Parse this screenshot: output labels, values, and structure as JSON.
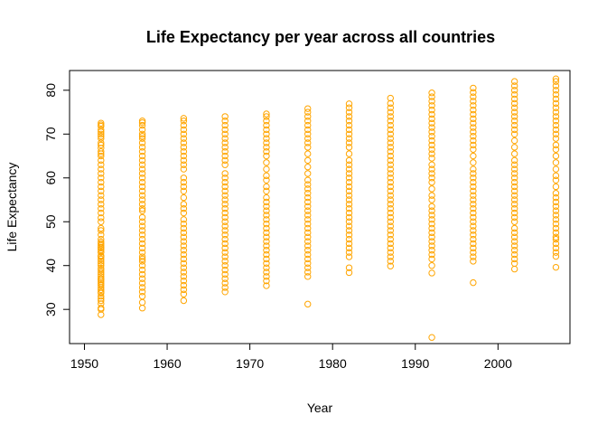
{
  "chart_data": {
    "type": "scatter",
    "title": "Life Expectancy per year across all countries",
    "xlabel": "Year",
    "ylabel": "Life Expectancy",
    "xlim": [
      1948.2,
      2008.7
    ],
    "ylim": [
      22.2,
      84.5
    ],
    "xticks": [
      1950,
      1960,
      1970,
      1980,
      1990,
      2000
    ],
    "yticks": [
      30,
      40,
      50,
      60,
      70,
      80
    ],
    "grid": false,
    "legend": "none",
    "color": "#FFA500",
    "series": [
      {
        "x": 1952,
        "values": [
          28.8,
          30.0,
          30.3,
          31.3,
          32.0,
          32.5,
          33.0,
          33.7,
          34.0,
          34.5,
          35.0,
          35.5,
          35.9,
          36.3,
          36.7,
          37.0,
          37.5,
          38.0,
          38.5,
          39.0,
          39.4,
          40.0,
          40.5,
          41.0,
          41.5,
          42.0,
          42.1,
          42.3,
          43.0,
          43.1,
          43.6,
          44.0,
          44.2,
          44.6,
          45.0,
          45.4,
          46.0,
          47.0,
          48.0,
          48.5,
          50.0,
          50.9,
          52.0,
          53.0,
          54.0,
          55.0,
          56.0,
          57.0,
          58.0,
          59.0,
          60.0,
          61.0,
          62.0,
          63.0,
          64.0,
          65.0,
          65.5,
          66.0,
          66.8,
          67.5,
          68.0,
          69.0,
          69.5,
          70.0,
          70.5,
          71.0,
          71.8,
          72.1,
          72.5
        ]
      },
      {
        "x": 1957,
        "values": [
          30.3,
          31.6,
          33.0,
          34.0,
          35.0,
          36.0,
          37.0,
          38.0,
          39.0,
          40.0,
          41.0,
          41.5,
          42.0,
          43.0,
          44.0,
          45.0,
          46.0,
          47.0,
          48.0,
          49.0,
          50.0,
          51.0,
          52.5,
          53.0,
          54.0,
          55.0,
          56.0,
          57.0,
          58.0,
          59.0,
          60.0,
          61.0,
          62.0,
          63.0,
          64.0,
          65.0,
          66.0,
          67.0,
          68.0,
          69.0,
          69.5,
          70.0,
          71.0,
          72.0,
          72.6,
          73.0
        ]
      },
      {
        "x": 1962,
        "values": [
          32.0,
          33.5,
          34.5,
          35.5,
          36.5,
          37.5,
          38.5,
          39.5,
          40.5,
          41.5,
          42.5,
          43.5,
          44.5,
          45.5,
          46.5,
          47.5,
          48.5,
          49.5,
          50.5,
          52.0,
          53.0,
          54.0,
          55.5,
          57.0,
          58.0,
          59.0,
          60.0,
          62.0,
          63.0,
          64.0,
          65.0,
          66.0,
          67.0,
          68.0,
          69.0,
          70.0,
          71.0,
          72.0,
          73.0,
          73.6
        ]
      },
      {
        "x": 1967,
        "values": [
          34.0,
          35.0,
          36.0,
          37.0,
          38.0,
          39.0,
          40.0,
          41.0,
          42.0,
          43.0,
          44.0,
          45.0,
          46.0,
          47.0,
          48.0,
          49.0,
          50.0,
          51.0,
          52.0,
          53.0,
          54.0,
          55.0,
          56.0,
          57.0,
          58.0,
          59.0,
          60.0,
          61.0,
          63.0,
          64.0,
          65.0,
          66.0,
          67.0,
          68.0,
          69.0,
          70.0,
          71.0,
          72.0,
          73.0,
          74.0
        ]
      },
      {
        "x": 1972,
        "values": [
          35.4,
          36.5,
          37.5,
          38.5,
          39.5,
          40.5,
          41.5,
          42.5,
          43.5,
          44.5,
          45.5,
          46.5,
          47.5,
          48.5,
          49.5,
          50.5,
          51.5,
          52.5,
          53.5,
          54.5,
          55.5,
          57.0,
          58.0,
          59.5,
          60.5,
          62.0,
          63.5,
          65.0,
          66.0,
          67.0,
          68.0,
          69.0,
          70.0,
          71.0,
          72.0,
          73.0,
          74.0,
          74.6
        ]
      },
      {
        "x": 1977,
        "values": [
          31.2,
          37.5,
          38.5,
          39.5,
          40.5,
          41.5,
          42.5,
          43.5,
          44.5,
          45.5,
          46.5,
          47.5,
          48.5,
          49.5,
          50.5,
          51.5,
          52.5,
          53.5,
          54.5,
          55.5,
          56.5,
          57.5,
          58.5,
          59.5,
          61.0,
          62.5,
          64.0,
          65.5,
          67.0,
          68.0,
          69.0,
          70.0,
          71.0,
          72.0,
          73.0,
          74.0,
          75.0,
          75.8
        ]
      },
      {
        "x": 1982,
        "values": [
          38.4,
          39.5,
          42.0,
          43.0,
          44.0,
          45.0,
          46.0,
          47.0,
          48.0,
          49.0,
          50.0,
          51.0,
          52.0,
          53.0,
          54.0,
          55.0,
          56.0,
          57.0,
          58.0,
          59.0,
          60.0,
          61.0,
          62.0,
          63.0,
          64.0,
          65.5,
          67.0,
          68.0,
          69.0,
          70.0,
          71.0,
          72.0,
          73.0,
          74.0,
          75.0,
          76.0,
          76.9
        ]
      },
      {
        "x": 1987,
        "values": [
          39.9,
          41.0,
          42.0,
          43.0,
          44.0,
          45.0,
          46.0,
          47.0,
          48.0,
          49.0,
          50.0,
          51.0,
          52.0,
          53.0,
          54.0,
          55.0,
          56.0,
          57.0,
          58.0,
          59.0,
          60.0,
          61.0,
          62.0,
          63.0,
          64.0,
          65.0,
          66.0,
          67.0,
          68.0,
          69.0,
          70.0,
          71.0,
          72.0,
          73.0,
          74.0,
          75.0,
          76.0,
          77.0,
          78.2
        ]
      },
      {
        "x": 1992,
        "values": [
          23.6,
          38.3,
          40.0,
          41.5,
          42.5,
          43.5,
          44.5,
          45.5,
          46.5,
          47.5,
          48.5,
          49.5,
          50.5,
          51.5,
          52.5,
          53.5,
          55.0,
          56.0,
          57.5,
          59.0,
          60.0,
          61.0,
          62.0,
          63.0,
          64.5,
          65.5,
          66.5,
          67.5,
          68.5,
          69.5,
          70.5,
          71.5,
          72.5,
          73.5,
          74.5,
          75.5,
          76.5,
          77.5,
          78.5,
          79.4
        ]
      },
      {
        "x": 1997,
        "values": [
          36.1,
          41.0,
          42.0,
          43.0,
          44.0,
          45.0,
          46.0,
          47.0,
          48.0,
          49.0,
          50.0,
          51.0,
          52.0,
          53.0,
          54.0,
          55.0,
          56.0,
          57.0,
          58.0,
          59.0,
          60.0,
          61.0,
          62.0,
          63.5,
          65.0,
          66.5,
          67.5,
          68.5,
          69.5,
          70.5,
          71.5,
          72.5,
          73.5,
          74.5,
          75.5,
          76.5,
          77.5,
          78.5,
          79.5,
          80.5
        ]
      },
      {
        "x": 2002,
        "values": [
          39.2,
          40.5,
          41.5,
          42.5,
          43.5,
          44.5,
          45.5,
          46.5,
          47.5,
          48.5,
          50.0,
          51.0,
          52.0,
          53.0,
          54.0,
          55.0,
          56.0,
          57.0,
          58.0,
          59.0,
          60.0,
          61.0,
          62.0,
          63.0,
          64.0,
          65.5,
          67.0,
          68.5,
          70.0,
          71.0,
          72.0,
          73.0,
          74.0,
          75.0,
          76.0,
          77.0,
          78.0,
          79.0,
          80.0,
          81.0,
          82.0
        ]
      },
      {
        "x": 2007,
        "values": [
          39.6,
          42.1,
          43.0,
          44.0,
          45.0,
          46.0,
          46.5,
          47.5,
          48.5,
          49.5,
          50.5,
          51.5,
          52.5,
          53.5,
          54.5,
          55.5,
          56.5,
          58.0,
          59.5,
          60.5,
          62.0,
          63.5,
          65.0,
          66.5,
          67.5,
          69.0,
          70.0,
          71.0,
          72.0,
          73.0,
          74.0,
          75.0,
          76.0,
          77.0,
          78.0,
          79.0,
          80.0,
          81.0,
          82.0,
          82.6
        ]
      }
    ]
  }
}
